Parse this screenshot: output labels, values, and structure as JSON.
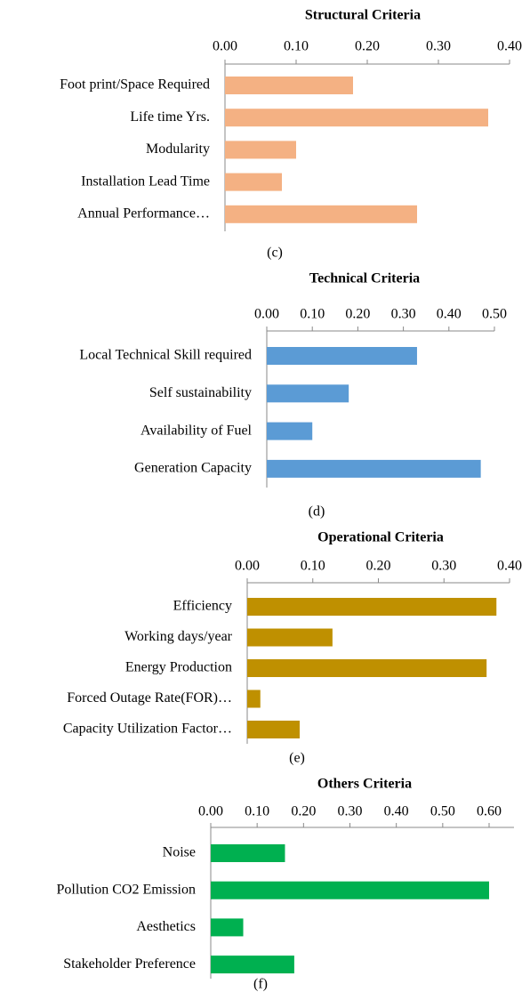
{
  "chart_data": [
    {
      "type": "bar",
      "title": "Structural Criteria",
      "caption": "(c)",
      "color": "#f4b183",
      "categories": [
        "Foot print/Space Required",
        "Life time Yrs.",
        "Modularity",
        "Installation Lead Time",
        "Annual Performance…"
      ],
      "values": [
        0.18,
        0.37,
        0.1,
        0.08,
        0.27
      ],
      "xlim": [
        0,
        0.4
      ],
      "xticks": [
        {
          "value": 0,
          "label": "0.00"
        },
        {
          "value": 0.1,
          "label": "0.10"
        },
        {
          "value": 0.2,
          "label": "0.20"
        },
        {
          "value": 0.3,
          "label": "0.30"
        },
        {
          "value": 0.4,
          "label": "0.40"
        }
      ]
    },
    {
      "type": "bar",
      "title": "Technical Criteria",
      "caption": "(d)",
      "color": "#5b9bd5",
      "categories": [
        "Local Technical Skill required",
        "Self sustainability",
        "Availability of Fuel",
        "Generation Capacity"
      ],
      "values": [
        0.33,
        0.18,
        0.1,
        0.47
      ],
      "xlim": [
        0,
        0.5
      ],
      "xticks": [
        {
          "value": 0,
          "label": "0.00"
        },
        {
          "value": 0.1,
          "label": "0.10"
        },
        {
          "value": 0.2,
          "label": "0.20"
        },
        {
          "value": 0.3,
          "label": "0.30"
        },
        {
          "value": 0.4,
          "label": "0.40"
        },
        {
          "value": 0.5,
          "label": "0.50"
        }
      ]
    },
    {
      "type": "bar",
      "title": "Operational Criteria",
      "caption": "(e)",
      "color": "#bf9000",
      "categories": [
        "Efficiency",
        "Working days/year",
        "Energy Production",
        "Forced Outage Rate(FOR)…",
        "Capacity Utilization Factor…"
      ],
      "values": [
        0.38,
        0.13,
        0.365,
        0.02,
        0.08
      ],
      "xlim": [
        0,
        0.4
      ],
      "xticks": [
        {
          "value": 0,
          "label": "0.00"
        },
        {
          "value": 0.1,
          "label": "0.10"
        },
        {
          "value": 0.2,
          "label": "0.20"
        },
        {
          "value": 0.3,
          "label": "0.30"
        },
        {
          "value": 0.4,
          "label": "0.40"
        }
      ]
    },
    {
      "type": "bar",
      "title": "Others Criteria",
      "caption": "(f)",
      "color": "#00b050",
      "categories": [
        "Noise",
        "Pollution CO2 Emission",
        "Aesthetics",
        "Stakeholder Preference"
      ],
      "values": [
        0.16,
        0.6,
        0.07,
        0.18
      ],
      "xlim": [
        0,
        0.6
      ],
      "xticks": [
        {
          "value": 0,
          "label": "0.00"
        },
        {
          "value": 0.1,
          "label": "0.10"
        },
        {
          "value": 0.2,
          "label": "0.20"
        },
        {
          "value": 0.3,
          "label": "0.30"
        },
        {
          "value": 0.4,
          "label": "0.40"
        },
        {
          "value": 0.5,
          "label": "0.50"
        },
        {
          "value": 0.6,
          "label": "0.60"
        }
      ]
    }
  ]
}
